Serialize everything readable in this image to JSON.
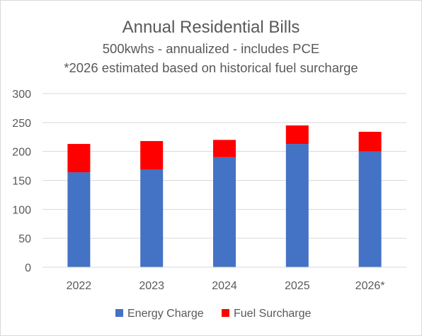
{
  "chart_data": {
    "type": "bar",
    "stacked": true,
    "title": "Annual Residential Bills",
    "subtitle_lines": [
      "500kwhs - annualized - includes PCE",
      "*2026 estimated based on historical fuel surcharge"
    ],
    "categories": [
      "2022",
      "2023",
      "2024",
      "2025",
      "2026*"
    ],
    "series": [
      {
        "name": "Energy Charge",
        "values": [
          164,
          169,
          190,
          213,
          200
        ],
        "color": "#4472c4"
      },
      {
        "name": "Fuel Surcharge",
        "values": [
          49,
          49,
          30,
          32,
          34
        ],
        "color": "#ff0000"
      }
    ],
    "ylim": [
      0,
      300
    ],
    "yticks": [
      0,
      50,
      100,
      150,
      200,
      250,
      300
    ],
    "grid": true,
    "legend_position": "bottom",
    "xlabel": "",
    "ylabel": ""
  }
}
